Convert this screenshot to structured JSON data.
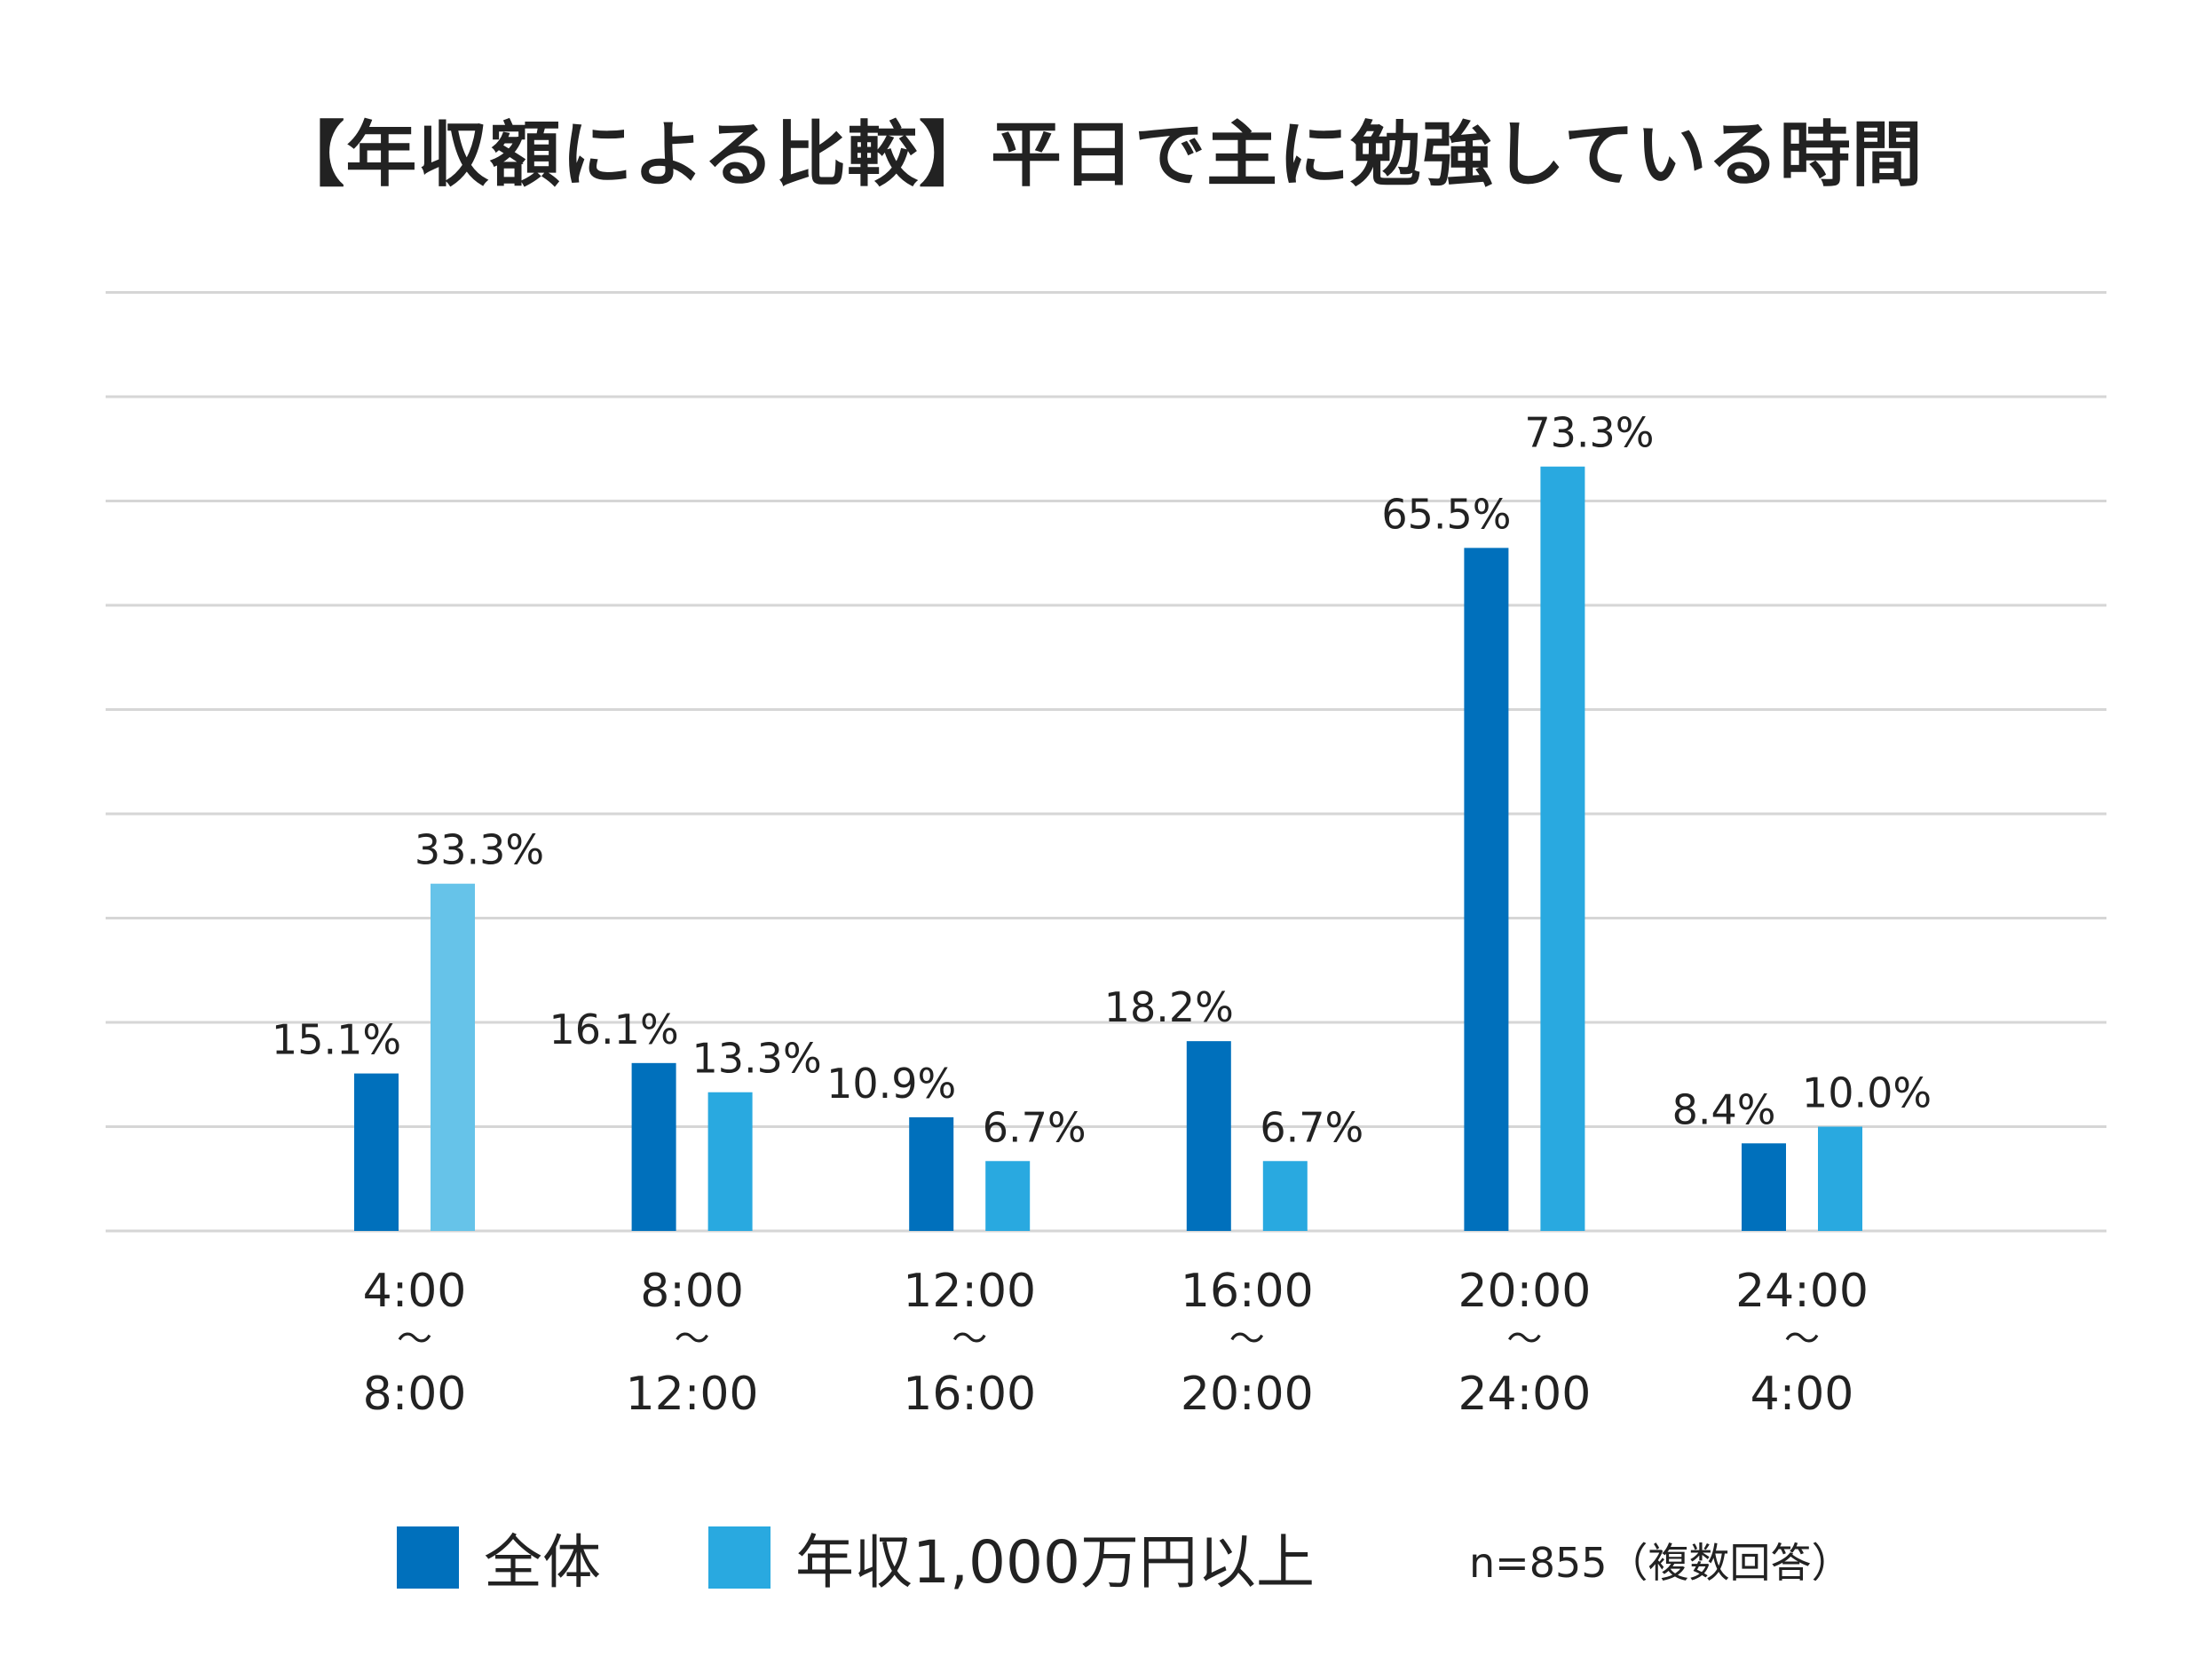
{
  "chart_data": {
    "type": "bar",
    "title": "【年収額による比較】平日で主に勉強している時間",
    "categories": [
      [
        "4:00",
        "〜",
        "8:00"
      ],
      [
        "8:00",
        "〜",
        "12:00"
      ],
      [
        "12:00",
        "〜",
        "16:00"
      ],
      [
        "16:00",
        "〜",
        "20:00"
      ],
      [
        "20:00",
        "〜",
        "24:00"
      ],
      [
        "24:00",
        "〜",
        "4:00"
      ]
    ],
    "series": [
      {
        "name": "全体",
        "values": [
          15.1,
          16.1,
          10.9,
          18.2,
          65.5,
          8.4
        ],
        "labels": [
          "15.1%",
          "16.1%",
          "10.9%",
          "18.2%",
          "65.5%",
          "8.4%"
        ],
        "color": "#0070BC"
      },
      {
        "name": "年収1,000万円以上",
        "values": [
          33.3,
          13.3,
          6.7,
          6.7,
          73.3,
          10.0
        ],
        "labels": [
          "33.3%",
          "13.3%",
          "6.7%",
          "6.7%",
          "73.3%",
          "10.0%"
        ],
        "color": "#29A9E0",
        "highlight_color": "#66C3E9"
      }
    ],
    "ylim": [
      0,
      90
    ],
    "ytick_step": 10,
    "grid": true,
    "y_tick_labels_shown": false,
    "legend": "bottom",
    "note": "n=855（複数回答）"
  }
}
